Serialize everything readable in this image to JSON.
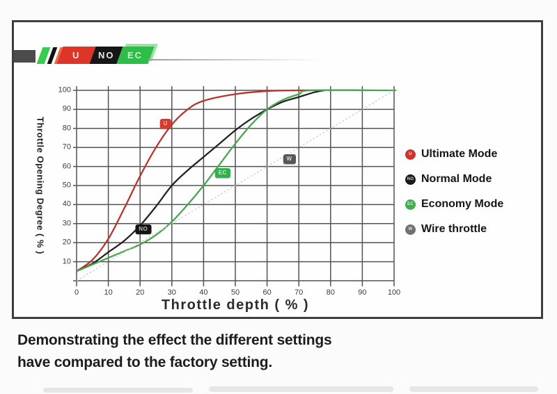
{
  "logo": {
    "bar_color": "#4b4b4b",
    "stripe_colors": [
      "#38cc4f",
      "#121212",
      "#e4704d"
    ],
    "segments": [
      {
        "text": "U",
        "bg": "#dd3528",
        "fg": "#f3ebe6"
      },
      {
        "text": "NO",
        "bg": "#161616",
        "fg": "#e9e9e9"
      },
      {
        "text": "EC",
        "bg": "#2fbd49",
        "fg": "#ccf3d2"
      }
    ]
  },
  "chart_data": {
    "type": "line",
    "xlabel": "Throttle depth ( % )",
    "ylabel": "Throttle Opening Degree ( % )",
    "xlim": [
      0,
      100
    ],
    "ylim": [
      0,
      100
    ],
    "grid": true,
    "x_ticks": [
      "0",
      "10",
      "20",
      "30",
      "40",
      "50",
      "60",
      "70",
      "80",
      "90",
      "100"
    ],
    "y_ticks": [
      "10",
      "20",
      "30",
      "40",
      "50",
      "60",
      "70",
      "80",
      "90",
      "100"
    ],
    "series": [
      {
        "name": "Ultimate Mode",
        "color": "#b8332e",
        "style": "solid",
        "points": [
          [
            0,
            5
          ],
          [
            5,
            11
          ],
          [
            10,
            22
          ],
          [
            15,
            38
          ],
          [
            20,
            55
          ],
          [
            25,
            70
          ],
          [
            30,
            82
          ],
          [
            35,
            90
          ],
          [
            40,
            94.5
          ],
          [
            50,
            98
          ],
          [
            60,
            99.6
          ],
          [
            70,
            100
          ],
          [
            78,
            100
          ]
        ]
      },
      {
        "name": "Normal Mode",
        "color": "#232323",
        "style": "solid",
        "points": [
          [
            0,
            5
          ],
          [
            5,
            9
          ],
          [
            10,
            15
          ],
          [
            15,
            21
          ],
          [
            20,
            29
          ],
          [
            25,
            39
          ],
          [
            30,
            50
          ],
          [
            35,
            58
          ],
          [
            40,
            65
          ],
          [
            45,
            72
          ],
          [
            50,
            79
          ],
          [
            55,
            85
          ],
          [
            60,
            90
          ],
          [
            65,
            94
          ],
          [
            70,
            96.5
          ],
          [
            75,
            99
          ],
          [
            78,
            100
          ]
        ]
      },
      {
        "name": "Economy Mode",
        "color": "#4aa64e",
        "style": "solid",
        "points": [
          [
            0,
            5
          ],
          [
            5,
            8.5
          ],
          [
            10,
            12
          ],
          [
            15,
            15.5
          ],
          [
            20,
            19
          ],
          [
            25,
            24
          ],
          [
            30,
            31
          ],
          [
            35,
            40
          ],
          [
            40,
            50
          ],
          [
            45,
            61
          ],
          [
            50,
            72
          ],
          [
            55,
            82
          ],
          [
            60,
            90
          ],
          [
            65,
            95
          ],
          [
            70,
            98
          ],
          [
            74,
            100
          ],
          [
            98,
            100
          ],
          [
            100,
            100
          ]
        ]
      },
      {
        "name": "Wire throttle",
        "color": "#c9c9c9",
        "style": "dotted",
        "points": [
          [
            0,
            0
          ],
          [
            100,
            100
          ]
        ]
      }
    ],
    "markers": [
      {
        "text": "U",
        "x": 28,
        "y": 82.5,
        "bg": "#d63a2e",
        "fg": "#f2bdb6"
      },
      {
        "text": "NO",
        "x": 21,
        "y": 27,
        "bg": "#141414",
        "fg": "#b9bfbf"
      },
      {
        "text": "EC",
        "x": 46,
        "y": 56.5,
        "bg": "#2db348",
        "fg": "#c9efcf"
      },
      {
        "text": "W",
        "x": 67,
        "y": 64,
        "bg": "#575757",
        "fg": "#d8d8d8"
      }
    ],
    "legend": {
      "position": "right",
      "items": [
        {
          "label": "Ultimate Mode",
          "icon_text": "U",
          "color": "#ce332d"
        },
        {
          "label": "Normal Mode",
          "icon_text": "NO",
          "color": "#1a1a1a"
        },
        {
          "label": "Economy Mode",
          "icon_text": "EC",
          "color": "#3fb04a"
        },
        {
          "label": "Wire throttle",
          "icon_text": "W",
          "color": "#717171"
        }
      ]
    }
  },
  "caption": {
    "line1": "Demonstrating the effect the different settings",
    "line2": "have compared to the factory setting."
  }
}
